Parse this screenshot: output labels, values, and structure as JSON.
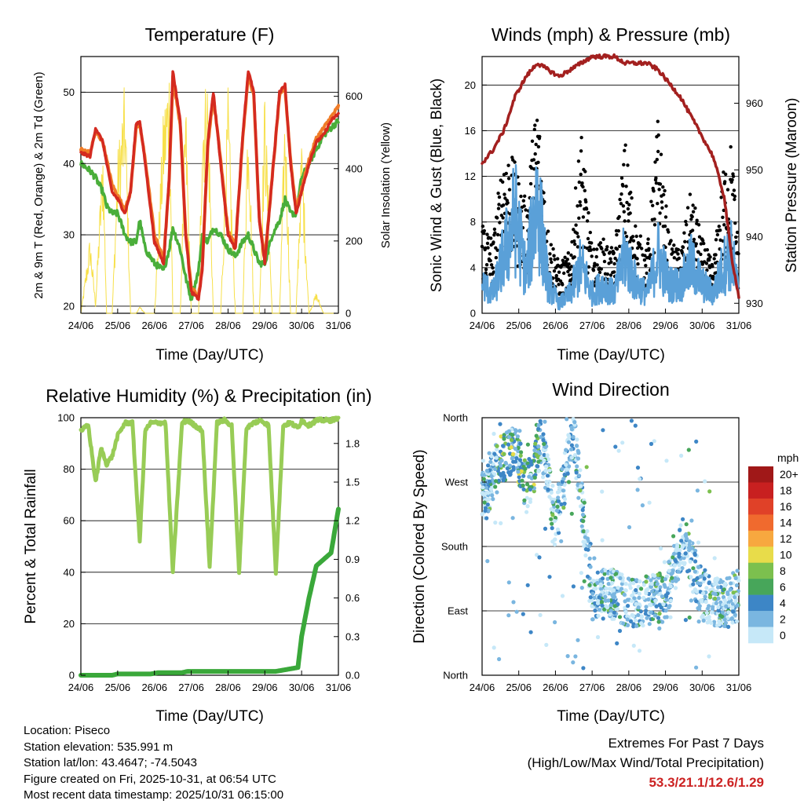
{
  "colors": {
    "temp_2m": "#d42a20",
    "temp_9m": "#f07c28",
    "dewpoint": "#4aae3a",
    "solar": "#f7e04a",
    "wind": "#5aa0d8",
    "gust": "#000000",
    "pressure": "#a3201f",
    "rh": "#98cc56",
    "precip": "#3aa83a",
    "extremes": "#cc2222"
  },
  "x_ticks": [
    "24/06",
    "25/06",
    "26/06",
    "27/06",
    "28/06",
    "29/06",
    "30/06",
    "31/06"
  ],
  "chart_data": [
    {
      "id": "temperature",
      "type": "line",
      "title": "Temperature (F)",
      "xlabel": "Time (Day/UTC)",
      "ylabel_left": "2m & 9m T (Red, Orange) & 2m Td (Green)",
      "ylabel_right": "Solar Insolation (Yellow)",
      "ylim_left": [
        19,
        55
      ],
      "ylim_right": [
        0,
        710
      ],
      "yticks_left": [
        "20",
        "30",
        "40",
        "50"
      ],
      "yticks_right": [
        "0",
        "200",
        "400",
        "600"
      ],
      "x": [
        0,
        0.25,
        0.4,
        0.6,
        0.7,
        0.85,
        1.0,
        1.2,
        1.35,
        1.5,
        1.6,
        1.75,
        2.0,
        2.25,
        2.4,
        2.5,
        2.7,
        2.85,
        3.0,
        3.2,
        3.3,
        3.45,
        3.6,
        3.8,
        4.0,
        4.2,
        4.4,
        4.55,
        4.7,
        4.85,
        5.0,
        5.2,
        5.4,
        5.55,
        5.7,
        5.85,
        6.0,
        6.2,
        6.4,
        6.6,
        6.8,
        7.0
      ],
      "series": [
        {
          "name": "2m T",
          "values": [
            41.5,
            41,
            45,
            43,
            40,
            36,
            35,
            33,
            36,
            45.5,
            46,
            40,
            29,
            26,
            38,
            53,
            46,
            30,
            22,
            21,
            25,
            43,
            50,
            40,
            30,
            28,
            44,
            53,
            50,
            32,
            26,
            38,
            50,
            51,
            40,
            33,
            36,
            40,
            43,
            44,
            46,
            47
          ]
        },
        {
          "name": "9m T",
          "values": [
            42,
            41.5,
            44.5,
            43,
            40.5,
            37,
            35.5,
            33.5,
            36,
            45,
            45.5,
            40.5,
            30,
            26.5,
            37.5,
            52,
            45.5,
            30.5,
            22.5,
            21.5,
            25.5,
            42.5,
            49.5,
            40.5,
            30.5,
            28.5,
            43.5,
            52.5,
            49.5,
            32.5,
            26.5,
            38,
            49.5,
            50.5,
            40.5,
            33.5,
            36.5,
            40.5,
            43.5,
            45,
            46.5,
            48
          ]
        },
        {
          "name": "2m Td",
          "values": [
            40,
            39,
            38,
            36,
            34,
            33,
            33,
            30,
            29,
            29,
            32,
            28,
            26,
            25,
            28,
            31,
            28,
            24,
            21,
            25,
            30,
            29,
            31,
            30,
            28,
            27,
            29,
            30,
            28,
            26,
            26,
            30,
            32,
            35,
            33,
            33,
            38,
            40,
            42,
            44,
            45,
            46
          ]
        },
        {
          "name": "Solar insolation",
          "values": [
            0,
            220,
            30,
            500,
            0,
            0,
            450,
            650,
            0,
            0,
            20,
            0,
            0,
            580,
            710,
            0,
            0,
            620,
            0,
            0,
            600,
            680,
            0,
            0,
            630,
            0,
            0,
            640,
            0,
            0,
            640,
            0,
            0,
            620,
            0,
            0,
            500,
            0,
            60,
            0,
            0,
            0
          ]
        }
      ]
    },
    {
      "id": "winds_pressure",
      "type": "line",
      "title": "Winds (mph) & Pressure (mb)",
      "xlabel": "Time (Day/UTC)",
      "ylabel_left": "Sonic Wind & Gust (Blue, Black)",
      "ylabel_right": "Station Pressure (Maroon)",
      "ylim_left": [
        0,
        22.5
      ],
      "ylim_right": [
        928.5,
        967
      ],
      "yticks_left": [
        "0",
        "4",
        "8",
        "12",
        "16",
        "20"
      ],
      "yticks_right": [
        "930",
        "940",
        "950",
        "960"
      ],
      "x": [
        0,
        0.3,
        0.6,
        0.9,
        1.2,
        1.5,
        1.8,
        2.1,
        2.4,
        2.7,
        3.0,
        3.3,
        3.6,
        3.9,
        4.2,
        4.5,
        4.8,
        5.1,
        5.4,
        5.7,
        6.0,
        6.3,
        6.6,
        6.8,
        7.0
      ],
      "series": [
        {
          "name": "Wind",
          "values": [
            3,
            2,
            6,
            10,
            4,
            12,
            3,
            1,
            2,
            5,
            2,
            3,
            2,
            6,
            3,
            2,
            6,
            3,
            3,
            5,
            3,
            2,
            5,
            6,
            2
          ]
        },
        {
          "name": "Gust",
          "values": [
            8,
            6,
            14,
            12,
            9,
            18,
            7,
            4,
            5,
            15,
            5,
            6,
            5,
            14,
            7,
            5,
            16,
            6,
            5,
            10,
            6,
            4,
            12,
            14,
            5
          ]
        },
        {
          "name": "Station Pressure",
          "values": [
            951,
            953,
            956,
            961,
            964,
            966,
            965,
            964,
            965,
            966,
            967,
            967,
            967,
            966,
            966,
            966,
            965,
            963,
            961,
            958,
            955,
            952,
            946,
            937,
            931
          ]
        }
      ]
    },
    {
      "id": "humidity_precip",
      "type": "line",
      "title": "Relative Humidity (%) & Precipitation (in)",
      "xlabel": "Time (Day/UTC)",
      "ylabel_left": "Percent & Total Rainfall",
      "ylim_left": [
        0,
        100
      ],
      "ylim_right": [
        0,
        2.0
      ],
      "yticks_left": [
        "0",
        "20",
        "40",
        "60",
        "80",
        "100"
      ],
      "yticks_right": [
        "0.0",
        "0.3",
        "0.6",
        "0.9",
        "1.2",
        "1.5",
        "1.8"
      ],
      "x": [
        0,
        0.2,
        0.4,
        0.55,
        0.7,
        0.85,
        1.0,
        1.2,
        1.4,
        1.6,
        1.75,
        1.9,
        2.1,
        2.3,
        2.5,
        2.75,
        2.9,
        3.1,
        3.3,
        3.5,
        3.7,
        3.9,
        4.1,
        4.3,
        4.5,
        4.7,
        4.9,
        5.1,
        5.3,
        5.5,
        5.7,
        5.9,
        6.0,
        6.2,
        6.4,
        6.6,
        6.8,
        7.0
      ],
      "series": [
        {
          "name": "Relative Humidity",
          "values": [
            95,
            97,
            75,
            88,
            82,
            85,
            93,
            98,
            98,
            52,
            95,
            98,
            98,
            98,
            40,
            98,
            99,
            97,
            95,
            42,
            98,
            99,
            97,
            40,
            96,
            98,
            99,
            97,
            40,
            97,
            98,
            96,
            99,
            97,
            99,
            99,
            99,
            100
          ]
        },
        {
          "name": "Total Precipitation",
          "values": [
            0,
            0,
            0,
            0,
            0,
            0,
            0.01,
            0.01,
            0.01,
            0.01,
            0.01,
            0.01,
            0.02,
            0.02,
            0.02,
            0.02,
            0.03,
            0.03,
            0.03,
            0.03,
            0.03,
            0.03,
            0.03,
            0.03,
            0.03,
            0.03,
            0.03,
            0.03,
            0.03,
            0.04,
            0.05,
            0.06,
            0.3,
            0.6,
            0.85,
            0.9,
            0.95,
            1.29
          ]
        }
      ]
    },
    {
      "id": "wind_direction",
      "type": "scatter",
      "title": "Wind Direction",
      "xlabel": "Time (Day/UTC)",
      "ylabel_left": "Direction (Colored By Speed)",
      "yticks_left": [
        "North",
        "East",
        "South",
        "West",
        "North"
      ],
      "colorbar_title": "mph",
      "colorbar_labels": [
        "20+",
        "18",
        "16",
        "14",
        "12",
        "10",
        "8",
        "6",
        "4",
        "2",
        "0"
      ],
      "colorbar_colors": [
        "#a01818",
        "#c82020",
        "#e04128",
        "#f06a2e",
        "#f7a83f",
        "#e8dc4a",
        "#7cc04e",
        "#47a65a",
        "#3d86c6",
        "#7ab6e0",
        "#c6e8f8"
      ],
      "x": [
        0.1,
        0.3,
        0.5,
        0.9,
        1.2,
        1.4,
        1.6,
        2.0,
        2.5,
        3.0,
        3.5,
        4.0,
        4.5,
        5.0,
        5.5,
        6.0,
        6.5,
        6.9
      ],
      "values": [
        250,
        280,
        300,
        320,
        260,
        285,
        330,
        210,
        340,
        110,
        115,
        100,
        105,
        110,
        190,
        110,
        100,
        110
      ]
    }
  ],
  "station_info": [
    "Location: Piseco",
    "Station elevation: 535.991 m",
    "Station lat/lon: 43.4647; -74.5043",
    "Figure created on Fri, 2025-10-31, at 06:54 UTC",
    "Most recent data timestamp: 2025/10/31 06:15:00"
  ],
  "extremes": {
    "title": "Extremes For Past 7 Days",
    "subtitle": "(High/Low/Max Wind/Total Precipitation)",
    "values": "53.3/21.1/12.6/1.29"
  }
}
